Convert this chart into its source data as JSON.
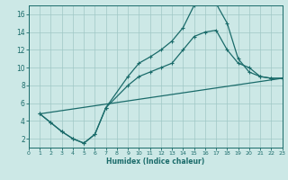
{
  "xlabel": "Humidex (Indice chaleur)",
  "bg_color": "#cce8e6",
  "grid_color": "#a0c8c6",
  "line_color": "#1a6b6a",
  "markersize": 2.5,
  "linewidth": 0.9,
  "xlim": [
    0,
    23
  ],
  "ylim": [
    1,
    17
  ],
  "xticks": [
    0,
    1,
    2,
    3,
    4,
    5,
    6,
    7,
    8,
    9,
    10,
    11,
    12,
    13,
    14,
    15,
    16,
    17,
    18,
    19,
    20,
    21,
    22,
    23
  ],
  "yticks": [
    2,
    4,
    6,
    8,
    10,
    12,
    14,
    16
  ],
  "line1_x": [
    1,
    2,
    3,
    4,
    5,
    6,
    7,
    9,
    10,
    11,
    12,
    13,
    14,
    15,
    16,
    17,
    18,
    19,
    20,
    21,
    22,
    23
  ],
  "line1_y": [
    4.8,
    3.8,
    2.8,
    2.0,
    1.5,
    2.5,
    5.5,
    9.0,
    10.5,
    11.2,
    12.0,
    13.0,
    14.5,
    17.0,
    17.2,
    17.2,
    15.0,
    11.0,
    9.5,
    9.0,
    8.8,
    8.8
  ],
  "line2_x": [
    1,
    2,
    3,
    4,
    5,
    6,
    7,
    9,
    10,
    11,
    12,
    13,
    14,
    15,
    16,
    17,
    18,
    19,
    20,
    21,
    22,
    23
  ],
  "line2_y": [
    4.8,
    3.8,
    2.8,
    2.0,
    1.5,
    2.5,
    5.5,
    8.0,
    9.0,
    9.5,
    10.0,
    10.5,
    12.0,
    13.5,
    14.0,
    14.2,
    12.0,
    10.5,
    10.0,
    9.0,
    8.8,
    8.8
  ],
  "line3_x": [
    1,
    23
  ],
  "line3_y": [
    4.8,
    8.8
  ]
}
